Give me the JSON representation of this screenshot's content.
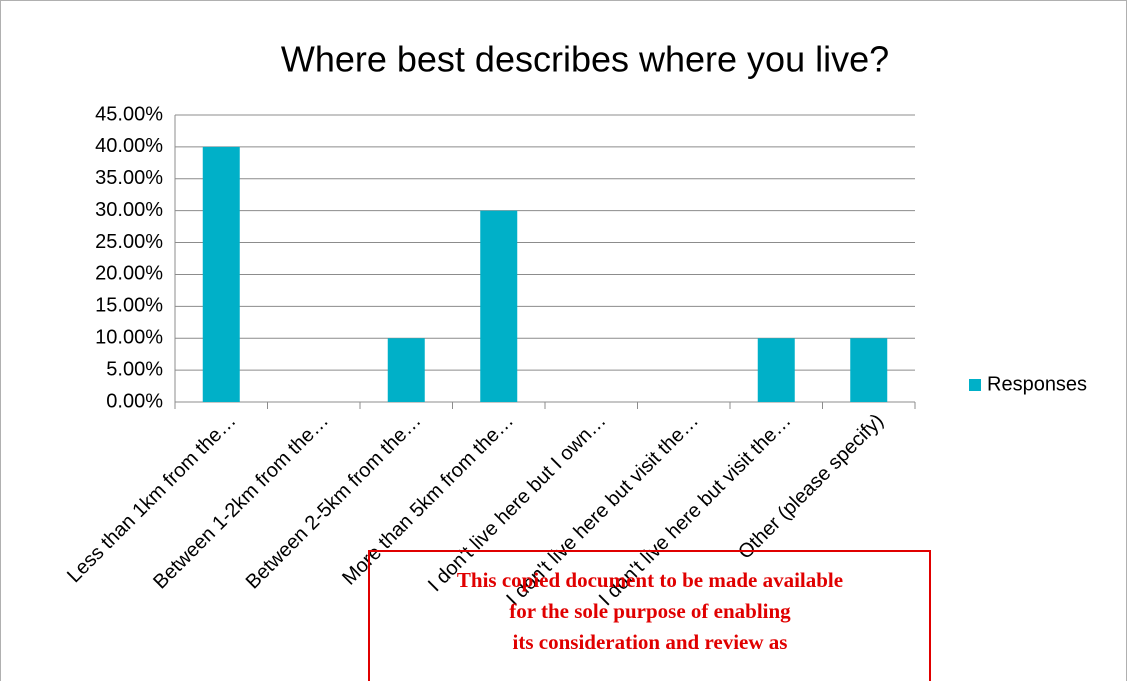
{
  "chart_data": {
    "type": "bar",
    "title": "Where best describes where you live?",
    "categories": [
      "Less than 1km from the…",
      "Between 1-2km from the…",
      "Between 2-5km from the…",
      "More than 5km from the…",
      "I don't live here but I own…",
      "I don't live here but visit the…",
      "I don't live here but visit the…",
      "Other (please specify)"
    ],
    "series": [
      {
        "name": "Responses",
        "color": "#00b0c8",
        "values": [
          40,
          0,
          10,
          30,
          0,
          0,
          10,
          10
        ]
      }
    ],
    "ylim": [
      0,
      45
    ],
    "yticks": [
      {
        "value": 0,
        "label": "0.00%"
      },
      {
        "value": 5,
        "label": "5.00%"
      },
      {
        "value": 10,
        "label": "10.00%"
      },
      {
        "value": 15,
        "label": "15.00%"
      },
      {
        "value": 20,
        "label": "20.00%"
      },
      {
        "value": 25,
        "label": "25.00%"
      },
      {
        "value": 30,
        "label": "30.00%"
      },
      {
        "value": 35,
        "label": "35.00%"
      },
      {
        "value": 40,
        "label": "40.00%"
      },
      {
        "value": 45,
        "label": "45.00%"
      }
    ],
    "grid": true,
    "legend": "right",
    "annotations": [
      "This copied document to be made available",
      "for the sole purpose of enabling",
      "its consideration and review as"
    ]
  }
}
